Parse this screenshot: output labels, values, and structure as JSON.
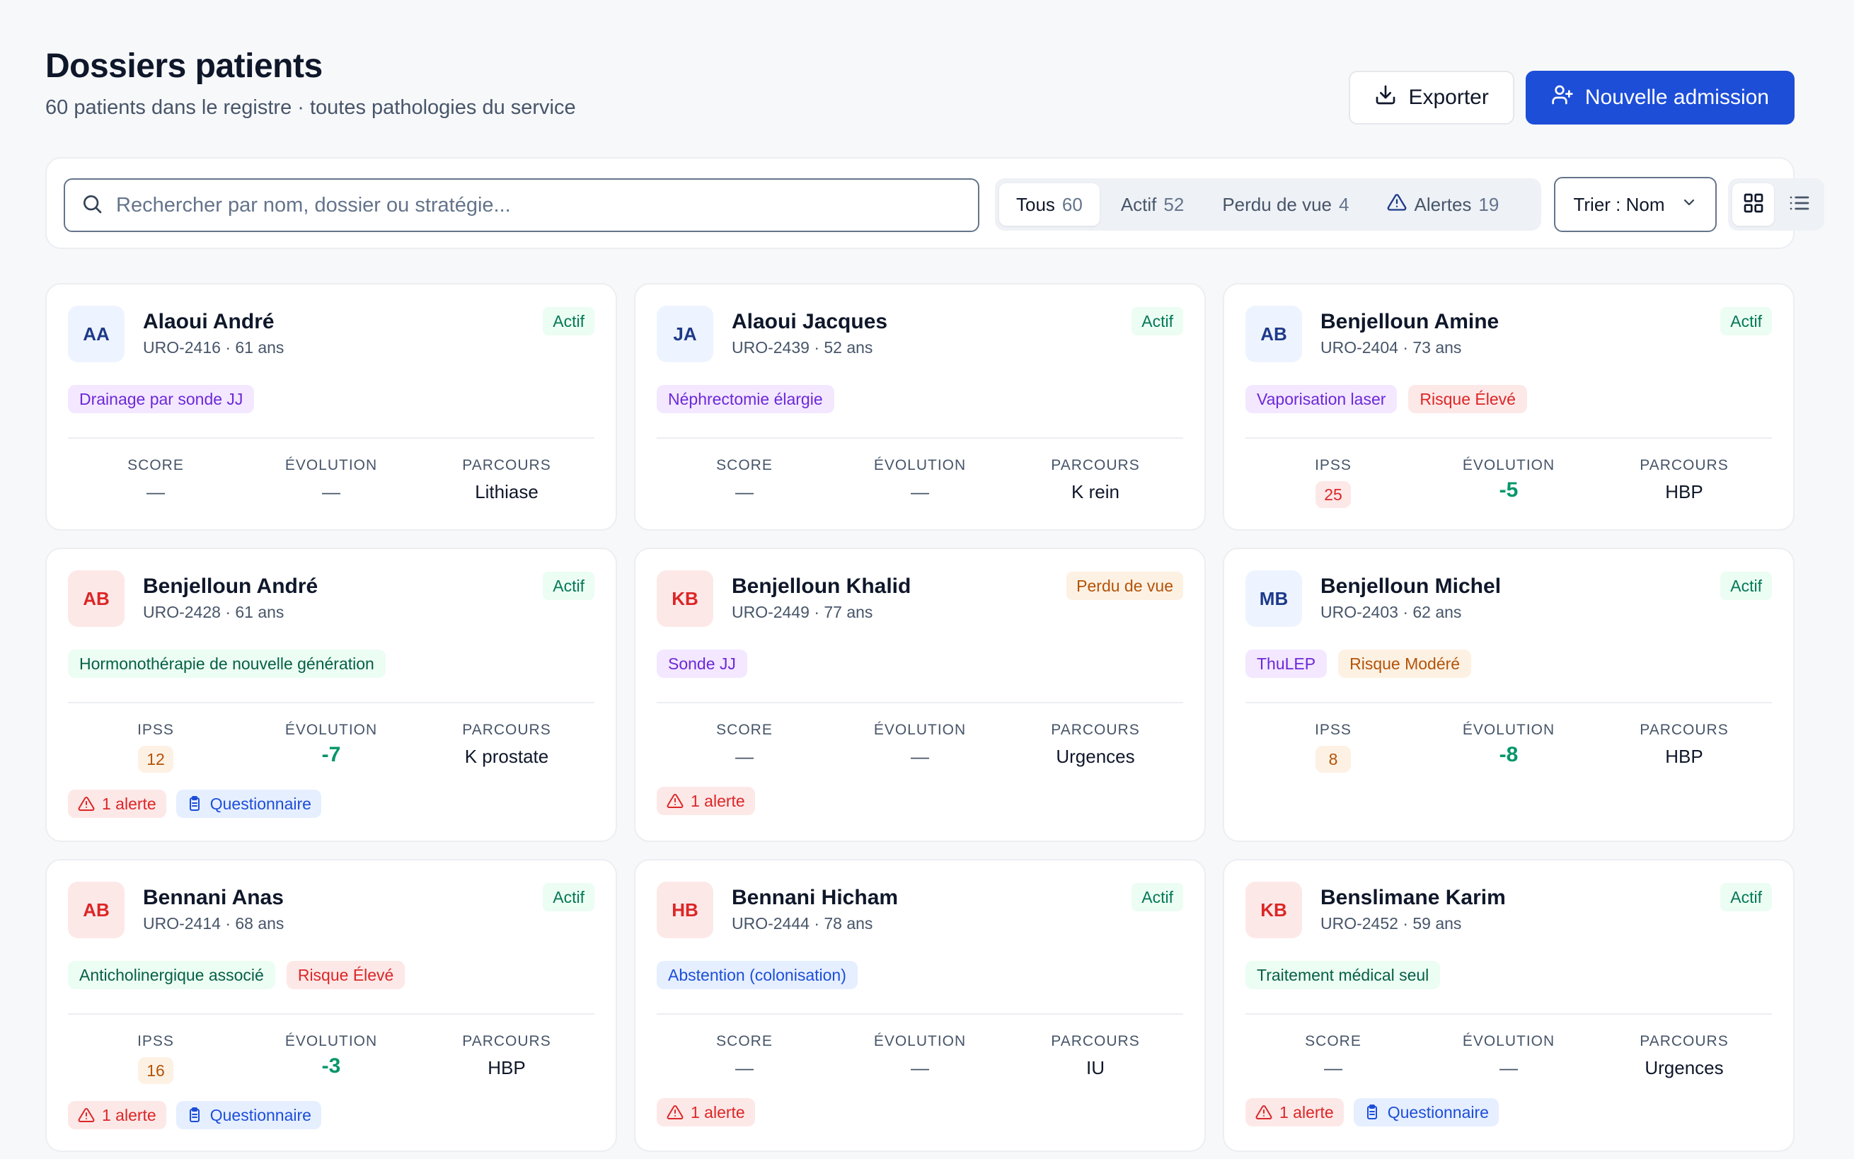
{
  "header": {
    "title": "Dossiers patients",
    "subtitle": "60 patients dans le registre · toutes pathologies du service",
    "export_label": "Exporter",
    "new_admission_label": "Nouvelle admission"
  },
  "toolbar": {
    "search_placeholder": "Rechercher par nom, dossier ou stratégie...",
    "filters": [
      {
        "label": "Tous",
        "count": "60"
      },
      {
        "label": "Actif",
        "count": "52"
      },
      {
        "label": "Perdu de vue",
        "count": "4"
      },
      {
        "label": "Alertes",
        "count": "19"
      }
    ],
    "sort_label": "Trier : Nom"
  },
  "labels": {
    "score": "SCORE",
    "ipss": "IPSS",
    "evolution": "ÉVOLUTION",
    "parcours": "PARCOURS",
    "dash": "—"
  },
  "patients": [
    {
      "initials": "AA",
      "name": "Alaoui André",
      "meta": "URO-2416 · 61 ans",
      "status": "Actif",
      "tags": [
        "Drainage par sonde JJ"
      ],
      "score_label": "SCORE",
      "score": "—",
      "evolution": "—",
      "parcours": "Lithiase"
    },
    {
      "initials": "JA",
      "name": "Alaoui Jacques",
      "meta": "URO-2439 · 52 ans",
      "status": "Actif",
      "tags": [
        "Néphrectomie élargie"
      ],
      "score_label": "SCORE",
      "score": "—",
      "evolution": "—",
      "parcours": "K rein"
    },
    {
      "initials": "AB",
      "name": "Benjelloun Amine",
      "meta": "URO-2404 · 73 ans",
      "status": "Actif",
      "tags": [
        "Vaporisation laser",
        "Risque Élevé"
      ],
      "score_label": "IPSS",
      "score": "25",
      "evolution": "-5",
      "parcours": "HBP"
    },
    {
      "initials": "AB",
      "name": "Benjelloun André",
      "meta": "URO-2428 · 61 ans",
      "status": "Actif",
      "tags": [
        "Hormonothérapie de nouvelle génération"
      ],
      "score_label": "IPSS",
      "score": "12",
      "evolution": "-7",
      "parcours": "K prostate",
      "alert": "1 alerte",
      "questionnaire": "Questionnaire"
    },
    {
      "initials": "KB",
      "name": "Benjelloun Khalid",
      "meta": "URO-2449 · 77 ans",
      "status": "Perdu de vue",
      "tags": [
        "Sonde JJ"
      ],
      "score_label": "SCORE",
      "score": "—",
      "evolution": "—",
      "parcours": "Urgences",
      "alert": "1 alerte"
    },
    {
      "initials": "MB",
      "name": "Benjelloun Michel",
      "meta": "URO-2403 · 62 ans",
      "status": "Actif",
      "tags": [
        "ThuLEP",
        "Risque Modéré"
      ],
      "score_label": "IPSS",
      "score": "8",
      "evolution": "-8",
      "parcours": "HBP"
    },
    {
      "initials": "AB",
      "name": "Bennani Anas",
      "meta": "URO-2414 · 68 ans",
      "status": "Actif",
      "tags": [
        "Anticholinergique associé",
        "Risque Élevé"
      ],
      "score_label": "IPSS",
      "score": "16",
      "evolution": "-3",
      "parcours": "HBP",
      "alert": "1 alerte",
      "questionnaire": "Questionnaire"
    },
    {
      "initials": "HB",
      "name": "Bennani Hicham",
      "meta": "URO-2444 · 78 ans",
      "status": "Actif",
      "tags": [
        "Abstention (colonisation)"
      ],
      "score_label": "SCORE",
      "score": "—",
      "evolution": "—",
      "parcours": "IU",
      "alert": "1 alerte"
    },
    {
      "initials": "KB",
      "name": "Benslimane Karim",
      "meta": "URO-2452 · 59 ans",
      "status": "Actif",
      "tags": [
        "Traitement médical seul"
      ],
      "score_label": "SCORE",
      "score": "—",
      "evolution": "—",
      "parcours": "Urgences",
      "alert": "1 alerte",
      "questionnaire": "Questionnaire"
    }
  ]
}
